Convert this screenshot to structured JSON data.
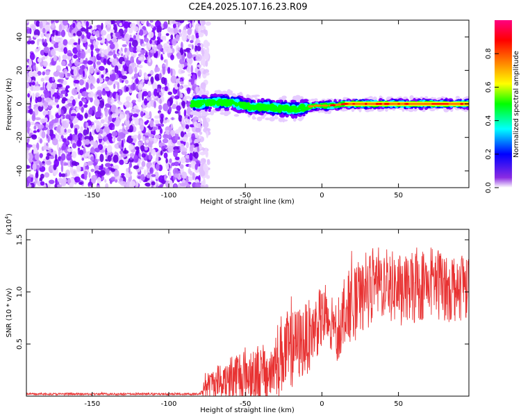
{
  "chart_data": [
    {
      "type": "heatmap",
      "title": "C2E4.2025.107.16.23.R09",
      "xlabel": "Height of straight line (km)",
      "ylabel": "Frequency (Hz)",
      "xlim": [
        -193,
        96
      ],
      "ylim": [
        -50,
        50
      ],
      "xticks": [
        -150,
        -100,
        -50,
        0,
        50
      ],
      "yticks": [
        -40,
        -20,
        0,
        20,
        40
      ],
      "xtick_labels": [
        "-150",
        "-100",
        "-50",
        "0",
        "50"
      ],
      "ytick_labels": [
        "-40",
        "-20",
        "0",
        "20",
        "40"
      ],
      "noise_region_x": [
        -193,
        -78
      ],
      "signal_band_x": [
        -85,
        96
      ],
      "signal_center_hz": [
        {
          "x": -85,
          "y": 0
        },
        {
          "x": -75,
          "y": 0.5
        },
        {
          "x": -65,
          "y": 1
        },
        {
          "x": -55,
          "y": 0
        },
        {
          "x": -45,
          "y": -2
        },
        {
          "x": -35,
          "y": -2
        },
        {
          "x": -25,
          "y": -3
        },
        {
          "x": -15,
          "y": -3
        },
        {
          "x": -5,
          "y": -1
        },
        {
          "x": 5,
          "y": -1
        },
        {
          "x": 15,
          "y": 0
        },
        {
          "x": 96,
          "y": 0
        }
      ],
      "colorbar": {
        "label": "Normalized spectral amplitude",
        "ticks": [
          0.0,
          0.2,
          0.4,
          0.6,
          0.8
        ],
        "tick_labels": [
          "0.0",
          "0.2",
          "0.4",
          "0.6",
          "0.8"
        ],
        "range": [
          0,
          1
        ],
        "colors": [
          "#ffffff",
          "#8000ff",
          "#0000ff",
          "#00ffff",
          "#00ff00",
          "#ffff00",
          "#ff8000",
          "#ff0000",
          "#ff00ff"
        ]
      }
    },
    {
      "type": "line",
      "title": "",
      "xlabel": "Height of straight line (km)",
      "ylabel": "SNR (10 * v/v)",
      "scale_label": "(x10",
      "scale_exp": "4",
      "scale_close": ")",
      "xlim": [
        -193,
        96
      ],
      "ylim": [
        0,
        1.6
      ],
      "xticks": [
        -150,
        -100,
        -50,
        0,
        50
      ],
      "yticks": [
        0.5,
        1.0,
        1.5
      ],
      "xtick_labels": [
        "-150",
        "-100",
        "-50",
        "0",
        "50"
      ],
      "ytick_labels": [
        "0.5",
        "1.0",
        "1.5"
      ],
      "color": "#e83232",
      "series_envelope": [
        {
          "x": -193,
          "base": 0.02,
          "amp": 0.01
        },
        {
          "x": -80,
          "base": 0.02,
          "amp": 0.01
        },
        {
          "x": -75,
          "base": 0.1,
          "amp": 0.12
        },
        {
          "x": -60,
          "base": 0.18,
          "amp": 0.25
        },
        {
          "x": -45,
          "base": 0.22,
          "amp": 0.3
        },
        {
          "x": -35,
          "base": 0.2,
          "amp": 0.28
        },
        {
          "x": -27,
          "base": 0.4,
          "amp": 0.4
        },
        {
          "x": -20,
          "base": 0.45,
          "amp": 0.38
        },
        {
          "x": -10,
          "base": 0.55,
          "amp": 0.35
        },
        {
          "x": 0,
          "base": 0.75,
          "amp": 0.3
        },
        {
          "x": 10,
          "base": 0.6,
          "amp": 0.3
        },
        {
          "x": 15,
          "base": 0.85,
          "amp": 0.35
        },
        {
          "x": 25,
          "base": 0.9,
          "amp": 0.35
        },
        {
          "x": 35,
          "base": 1.1,
          "amp": 0.35
        },
        {
          "x": 55,
          "base": 1.0,
          "amp": 0.35
        },
        {
          "x": 70,
          "base": 1.1,
          "amp": 0.35
        },
        {
          "x": 85,
          "base": 1.05,
          "amp": 0.35
        },
        {
          "x": 96,
          "base": 1.1,
          "amp": 0.35
        }
      ]
    }
  ]
}
